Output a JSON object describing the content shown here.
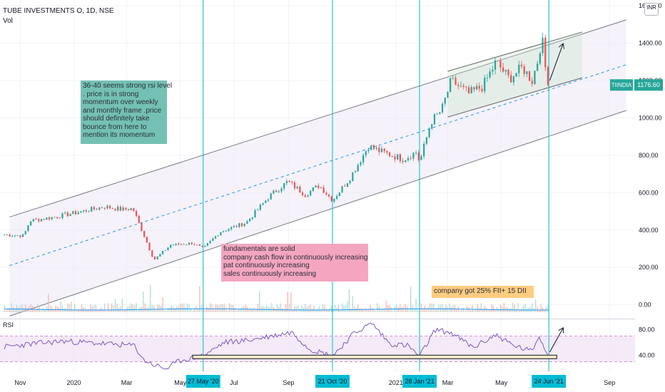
{
  "header": {
    "title": "TUBE INVESTMENTS O, 1D, NSE",
    "vol_label": "Vol",
    "currency_button": "INR"
  },
  "rsi_label": "RSI",
  "price_tag": {
    "symbol": "TIINDIA",
    "price": "1176.60",
    "color": "#26a69a"
  },
  "annotations": {
    "rsi_note": [
      "36-40 seems strong rsi level",
      ". price is in strong",
      "momentum over weekly",
      "and monthly frame .price",
      "should definitely take",
      "bounce from here to",
      "mention its momentum"
    ],
    "fundamentals_note": [
      "fundamentals are solid",
      "company cash flow in continuously  increasing",
      "pat continuously increasing",
      "sales continuously increasing"
    ],
    "fii_note": "company got 25% FII+ 15 DII"
  },
  "colors": {
    "up": "#26a69a",
    "down": "#ef5350",
    "channel_fill": "#ede7f6",
    "channel_line": "#787b86",
    "midline": "#2196f3",
    "rsi_line": "#7e57c2",
    "vline": "#00bcd4",
    "rsi_note_bg": "#74c0b4",
    "fund_note_bg": "#f4a6c0",
    "fii_note_bg": "#ffcc80"
  },
  "chart_data": [
    {
      "type": "candlestick",
      "title": "TUBE INVESTMENTS O, 1D, NSE",
      "x_ticks": [
        "Nov",
        "2020",
        "Mar",
        "May",
        "Jul",
        "Sep",
        "2021",
        "Mar",
        "May",
        "Sep"
      ],
      "y_ticks": [
        "0.00",
        "200.00",
        "400.00",
        "600.00",
        "800.00",
        "1000.00",
        "1200.00",
        "1400.00",
        "1600.00"
      ],
      "ylim": [
        -70,
        1620
      ],
      "last_price": 1176.6,
      "price_path": [
        [
          "2019-10-14",
          375
        ],
        [
          "2019-11-05",
          370
        ],
        [
          "2019-11-12",
          450
        ],
        [
          "2019-12-10",
          470
        ],
        [
          "2020-01-10",
          500
        ],
        [
          "2020-02-05",
          525
        ],
        [
          "2020-02-25",
          510
        ],
        [
          "2020-03-08",
          515
        ],
        [
          "2020-03-20",
          380
        ],
        [
          "2020-04-01",
          240
        ],
        [
          "2020-04-20",
          320
        ],
        [
          "2020-05-15",
          330
        ],
        [
          "2020-05-27",
          300
        ],
        [
          "2020-06-15",
          390
        ],
        [
          "2020-07-15",
          440
        ],
        [
          "2020-08-10",
          580
        ],
        [
          "2020-08-31",
          660
        ],
        [
          "2020-09-20",
          590
        ],
        [
          "2020-10-06",
          640
        ],
        [
          "2020-10-21",
          560
        ],
        [
          "2020-11-10",
          680
        ],
        [
          "2020-12-01",
          850
        ],
        [
          "2020-12-15",
          820
        ],
        [
          "2021-01-10",
          780
        ],
        [
          "2021-01-25",
          820
        ],
        [
          "2021-01-28",
          760
        ],
        [
          "2021-02-10",
          980
        ],
        [
          "2021-02-22",
          1040
        ],
        [
          "2021-03-05",
          1200
        ],
        [
          "2021-03-25",
          1130
        ],
        [
          "2021-04-10",
          1170
        ],
        [
          "2021-04-25",
          1300
        ],
        [
          "2021-05-10",
          1210
        ],
        [
          "2021-05-25",
          1270
        ],
        [
          "2021-06-05",
          1200
        ],
        [
          "2021-06-12",
          1320
        ],
        [
          "2021-06-16",
          1440
        ],
        [
          "2021-06-20",
          1270
        ],
        [
          "2021-06-24",
          1176.6
        ]
      ],
      "channel": {
        "upper": [
          [
            "2019-10-20",
            470
          ],
          [
            "2021-09-20",
            1525
          ]
        ],
        "lower": [
          [
            "2019-10-20",
            -60
          ],
          [
            "2021-09-20",
            1040
          ]
        ],
        "mid": [
          [
            "2019-10-20",
            210
          ],
          [
            "2021-09-20",
            1285
          ]
        ]
      },
      "small_channel": {
        "upper": [
          [
            "2021-03-01",
            1250
          ],
          [
            "2021-08-01",
            1460
          ]
        ],
        "lower": [
          [
            "2021-03-01",
            1005
          ],
          [
            "2021-08-01",
            1215
          ]
        ]
      },
      "arrow": {
        "from": [
          "2021-06-25",
          1200
        ],
        "to": [
          "2021-07-10",
          1395
        ]
      },
      "volume_ylim": [
        0,
        500
      ]
    },
    {
      "type": "line",
      "title": "RSI",
      "y_ticks": [
        "40.00",
        "80.00"
      ],
      "ylim": [
        15,
        95
      ],
      "overbought": 70,
      "oversold": 30,
      "support_level": 38,
      "path": [
        [
          "2019-10-14",
          53
        ],
        [
          "2019-11-15",
          58
        ],
        [
          "2019-12-20",
          62
        ],
        [
          "2020-02-05",
          58
        ],
        [
          "2020-03-10",
          55
        ],
        [
          "2020-03-20",
          33
        ],
        [
          "2020-04-01",
          25
        ],
        [
          "2020-04-15",
          19
        ],
        [
          "2020-05-01",
          32
        ],
        [
          "2020-05-27",
          39
        ],
        [
          "2020-06-20",
          60
        ],
        [
          "2020-07-20",
          64
        ],
        [
          "2020-08-20",
          72
        ],
        [
          "2020-09-05",
          76
        ],
        [
          "2020-09-25",
          50
        ],
        [
          "2020-10-21",
          39
        ],
        [
          "2020-11-15",
          75
        ],
        [
          "2020-12-05",
          90
        ],
        [
          "2020-12-25",
          58
        ],
        [
          "2021-01-15",
          55
        ],
        [
          "2021-01-28",
          38
        ],
        [
          "2021-02-15",
          80
        ],
        [
          "2021-03-05",
          75
        ],
        [
          "2021-03-30",
          52
        ],
        [
          "2021-04-25",
          72
        ],
        [
          "2021-05-15",
          55
        ],
        [
          "2021-06-05",
          46
        ],
        [
          "2021-06-12",
          70
        ],
        [
          "2021-06-17",
          58
        ],
        [
          "2021-06-24",
          40
        ]
      ]
    }
  ],
  "marked_dates": [
    {
      "date": "2020-05-27",
      "label": "27 May '20"
    },
    {
      "date": "2020-10-21",
      "label": "21 Oct '20"
    },
    {
      "date": "2021-01-28",
      "label": "28 Jan '21"
    },
    {
      "date": "2021-06-24",
      "label": "24 Jun '21"
    }
  ]
}
